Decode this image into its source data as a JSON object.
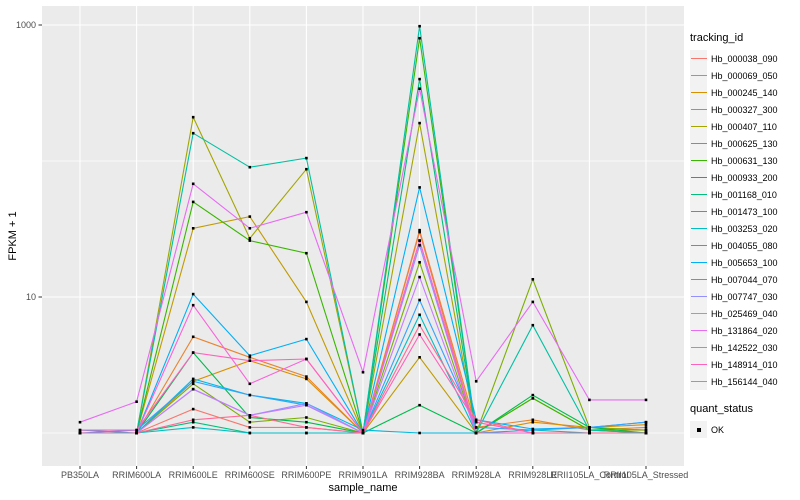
{
  "chart_data": {
    "type": "line",
    "title": "",
    "xlabel": "sample_name",
    "ylabel": "FPKM + 1",
    "y_scale": "log10",
    "ylim": [
      1,
      1200
    ],
    "grid": true,
    "legend_position": "right",
    "panel_bg": "#EBEBEB",
    "gridline_color": "#FFFFFF",
    "tick_label_color": "#4D4D4D",
    "point_color": "#000000",
    "y_ticks": [
      {
        "label": "1000",
        "value": 1000
      },
      {
        "label": "10",
        "value": 10
      }
    ],
    "y_major_gridlines": [
      10,
      1000
    ],
    "y_minor_gridlines": [
      1,
      100
    ],
    "categories": [
      "PB350LA",
      "RRIM600LA",
      "RRIM600LE",
      "RRIM600SE",
      "RRIM600PE",
      "RRIM901LA",
      "RRIM928BA",
      "RRIM928LA",
      "RRIM928LE",
      "RRII105LA_Control",
      "RRII105LA_Stressed"
    ],
    "series": [
      {
        "name": "Hb_000038_090",
        "color": "#F8766D",
        "values": [
          1.0,
          1.0,
          1.5,
          1.1,
          1.1,
          1.0,
          30,
          1.0,
          1.0,
          1.0,
          1.0
        ]
      },
      {
        "name": "Hb_000069_050",
        "color": "#EA8331",
        "values": [
          1.0,
          1.0,
          5.1,
          3.6,
          2.6,
          1.0,
          31,
          1.1,
          1.25,
          1.05,
          1.1
        ]
      },
      {
        "name": "Hb_000245_140",
        "color": "#D89000",
        "values": [
          1.0,
          1.0,
          2.4,
          3.4,
          2.5,
          1.0,
          26,
          1.0,
          1.2,
          1.1,
          1.15
        ]
      },
      {
        "name": "Hb_000327_300",
        "color": "#C09B00",
        "values": [
          1.0,
          1.0,
          32,
          39,
          9.2,
          1.0,
          3.6,
          1.0,
          1.0,
          1.0,
          1.0
        ]
      },
      {
        "name": "Hb_000407_110",
        "color": "#A3A500",
        "values": [
          1.0,
          1.0,
          210,
          27,
          87,
          1.0,
          190,
          1.0,
          1.8,
          1.05,
          1.05
        ]
      },
      {
        "name": "Hb_000625_130",
        "color": "#7CAE00",
        "values": [
          1.0,
          1.0,
          2.3,
          1.2,
          1.3,
          1.0,
          18,
          1.0,
          13.5,
          1.1,
          1.05
        ]
      },
      {
        "name": "Hb_000631_130",
        "color": "#39B600",
        "values": [
          1.0,
          1.0,
          50,
          26,
          21,
          1.0,
          800,
          1.0,
          1.8,
          1.05,
          1.0
        ]
      },
      {
        "name": "Hb_000933_200",
        "color": "#00BB4E",
        "values": [
          1.0,
          1.0,
          3.9,
          1.3,
          1.2,
          1.0,
          1.6,
          1.0,
          1.9,
          1.1,
          1.0
        ]
      },
      {
        "name": "Hb_001168_010",
        "color": "#00BF7D",
        "values": [
          1.0,
          1.0,
          1.2,
          1.0,
          1.0,
          1.0,
          400,
          1.0,
          1.0,
          1.0,
          1.0
        ]
      },
      {
        "name": "Hb_001473_100",
        "color": "#00C1A3",
        "values": [
          1.0,
          1.0,
          160,
          90,
          105,
          1.0,
          980,
          1.0,
          6.2,
          1.05,
          1.0
        ]
      },
      {
        "name": "Hb_003253_020",
        "color": "#00BFC4",
        "values": [
          1.0,
          1.0,
          1.1,
          1.0,
          1.0,
          1.0,
          7.4,
          1.0,
          1.05,
          1.0,
          1.0
        ]
      },
      {
        "name": "Hb_004055_080",
        "color": "#00BAE0",
        "values": [
          1.05,
          1.0,
          2.5,
          1.9,
          1.65,
          1.05,
          1.0,
          1.0,
          1.0,
          1.0,
          1.0
        ]
      },
      {
        "name": "Hb_005653_100",
        "color": "#00B0F6",
        "values": [
          1.0,
          1.0,
          10.5,
          3.7,
          4.9,
          1.0,
          64,
          1.25,
          1.07,
          1.1,
          1.2
        ]
      },
      {
        "name": "Hb_007044_070",
        "color": "#35A2FF",
        "values": [
          1.0,
          1.05,
          2.4,
          1.9,
          1.6,
          1.0,
          9.5,
          1.1,
          1.05,
          1.1,
          1.2
        ]
      },
      {
        "name": "Hb_007747_030",
        "color": "#9590FF",
        "values": [
          1.0,
          1.0,
          2.1,
          1.35,
          1.65,
          1.0,
          24,
          1.0,
          1.0,
          1.0,
          1.0
        ]
      },
      {
        "name": "Hb_025469_040",
        "color": "#C77CFF",
        "values": [
          1.0,
          1.0,
          2.1,
          1.35,
          1.6,
          1.0,
          14,
          1.0,
          1.0,
          1.0,
          1.0
        ]
      },
      {
        "name": "Hb_131864_020",
        "color": "#E76BF3",
        "values": [
          1.2,
          1.7,
          68,
          32,
          42,
          2.8,
          340,
          2.4,
          9.2,
          1.75,
          1.75
        ]
      },
      {
        "name": "Hb_142522_030",
        "color": "#FA62DB",
        "values": [
          1.0,
          1.0,
          8.7,
          2.3,
          3.5,
          1.0,
          26,
          1.0,
          1.0,
          1.0,
          1.0
        ]
      },
      {
        "name": "Hb_148914_010",
        "color": "#FF62BC",
        "values": [
          1.05,
          1.05,
          3.9,
          3.4,
          3.5,
          1.0,
          5.3,
          1.2,
          1.0,
          1.0,
          1.0
        ]
      },
      {
        "name": "Hb_156144_040",
        "color": "#FF6A98",
        "values": [
          1.0,
          1.0,
          1.25,
          1.35,
          1.1,
          1.0,
          6.2,
          1.25,
          1.0,
          1.0,
          1.0
        ]
      }
    ],
    "legend": {
      "tracking_title": "tracking_id",
      "quant_title": "quant_status",
      "quant_ok_label": "OK"
    }
  }
}
